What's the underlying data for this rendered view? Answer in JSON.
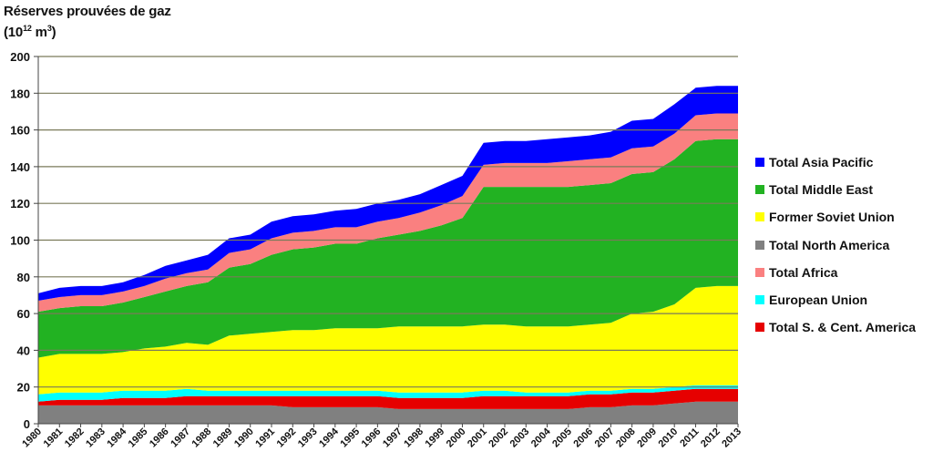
{
  "chart_data": {
    "type": "area",
    "stacked": true,
    "title": "Réserves prouvées de gaz",
    "unit_label": {
      "prefix": "(10",
      "sup1": "12",
      "middle": " m",
      "sup2": "3",
      "suffix": ")"
    },
    "xlabel": "",
    "ylabel": "",
    "ylim": [
      0,
      200
    ],
    "yticks": [
      0,
      20,
      40,
      60,
      80,
      100,
      120,
      140,
      160,
      180,
      200
    ],
    "grid": true,
    "legend_position": "right",
    "x": [
      "1980",
      "1981",
      "1982",
      "1983",
      "1984",
      "1985",
      "1986",
      "1987",
      "1988",
      "1989",
      "1990",
      "1991",
      "1992",
      "1993",
      "1994",
      "1995",
      "1996",
      "1997",
      "1998",
      "1999",
      "2000",
      "2001",
      "2002",
      "2003",
      "2004",
      "2005",
      "2006",
      "2007",
      "2008",
      "2009",
      "2010",
      "2011",
      "2012",
      "2013"
    ],
    "series": [
      {
        "name": "Total Asia Pacific",
        "color": "#0000ff",
        "values": [
          4,
          5,
          5,
          5,
          5,
          6,
          7,
          7,
          8,
          8,
          8,
          9,
          9,
          9,
          9,
          10,
          10,
          10,
          10,
          11,
          11,
          12,
          12,
          12,
          13,
          13,
          13,
          14,
          15,
          15,
          16,
          15,
          15,
          15
        ]
      },
      {
        "name": "Total Middle East",
        "color": "#22b222",
        "values": [
          25,
          25,
          26,
          26,
          27,
          28,
          30,
          31,
          34,
          37,
          38,
          42,
          44,
          45,
          46,
          46,
          49,
          50,
          52,
          55,
          59,
          75,
          75,
          76,
          76,
          76,
          76,
          76,
          76,
          76,
          79,
          80,
          80,
          80
        ]
      },
      {
        "name": "Former Soviet Union",
        "color": "#ffff00",
        "values": [
          20,
          21,
          21,
          21,
          21,
          23,
          24,
          25,
          25,
          30,
          31,
          32,
          33,
          33,
          34,
          34,
          34,
          36,
          36,
          36,
          36,
          36,
          36,
          36,
          36,
          36,
          36,
          37,
          41,
          42,
          45,
          53,
          54,
          54
        ]
      },
      {
        "name": "Total North America",
        "color": "#808080",
        "values": [
          10,
          10,
          10,
          10,
          10,
          10,
          10,
          10,
          10,
          10,
          10,
          10,
          9,
          9,
          9,
          9,
          9,
          8,
          8,
          8,
          8,
          8,
          8,
          8,
          8,
          8,
          9,
          9,
          10,
          10,
          11,
          12,
          12,
          12
        ]
      },
      {
        "name": "Total Africa",
        "color": "#fa8080",
        "values": [
          6,
          6,
          6,
          6,
          6,
          6,
          7,
          7,
          7,
          8,
          8,
          9,
          9,
          9,
          9,
          9,
          9,
          9,
          10,
          11,
          12,
          12,
          13,
          13,
          13,
          14,
          14,
          14,
          14,
          14,
          14,
          14,
          14,
          14
        ]
      },
      {
        "name": "European Union",
        "color": "#00ffff",
        "values": [
          4,
          4,
          4,
          4,
          4,
          4,
          4,
          4,
          3,
          3,
          3,
          3,
          3,
          3,
          3,
          3,
          3,
          3,
          3,
          3,
          3,
          3,
          3,
          2,
          2,
          2,
          2,
          2,
          2,
          2,
          2,
          2,
          2,
          2
        ]
      },
      {
        "name": "Total S. & Cent. America",
        "color": "#e60000",
        "values": [
          2,
          3,
          3,
          3,
          4,
          4,
          4,
          5,
          5,
          5,
          5,
          5,
          6,
          6,
          6,
          6,
          6,
          6,
          6,
          6,
          6,
          7,
          7,
          7,
          7,
          7,
          7,
          7,
          7,
          7,
          7,
          7,
          7,
          7
        ]
      }
    ],
    "stack_order_bottom_to_top": [
      "Total North America",
      "Total S. & Cent. America",
      "European Union",
      "Former Soviet Union",
      "Total Middle East",
      "Total Africa",
      "Total Asia Pacific"
    ]
  }
}
